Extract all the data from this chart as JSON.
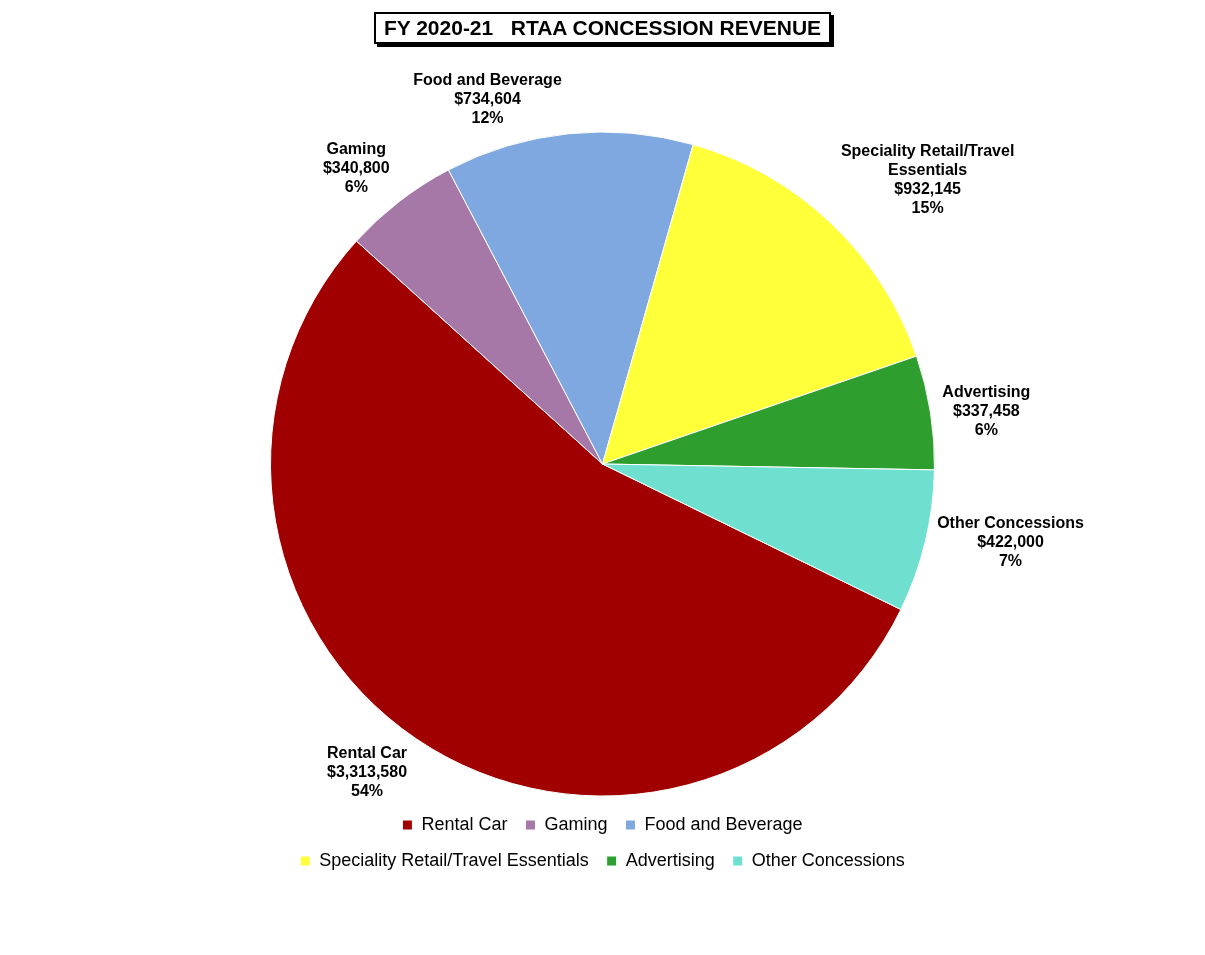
{
  "chart_data": {
    "type": "pie",
    "title": "FY 2020-21   RTAA CONCESSION REVENUE",
    "categories": [
      "Rental Car",
      "Gaming",
      "Food and Beverage",
      "Speciality Retail/Travel Essentials",
      "Advertising",
      "Other Concessions"
    ],
    "values": [
      3313580,
      340800,
      734604,
      932145,
      337458,
      422000
    ],
    "colors": [
      "#a00000",
      "#a678a8",
      "#7fa8e0",
      "#ffff3a",
      "#2e9e2e",
      "#6fe0d0"
    ],
    "value_labels": [
      "$3,313,580\n54%",
      "$340,800\n6%",
      "$734,604\n12%",
      "$932,145\n15%",
      "$337,458\n6%",
      "$422,000\n7%"
    ],
    "legend": "bottom"
  }
}
